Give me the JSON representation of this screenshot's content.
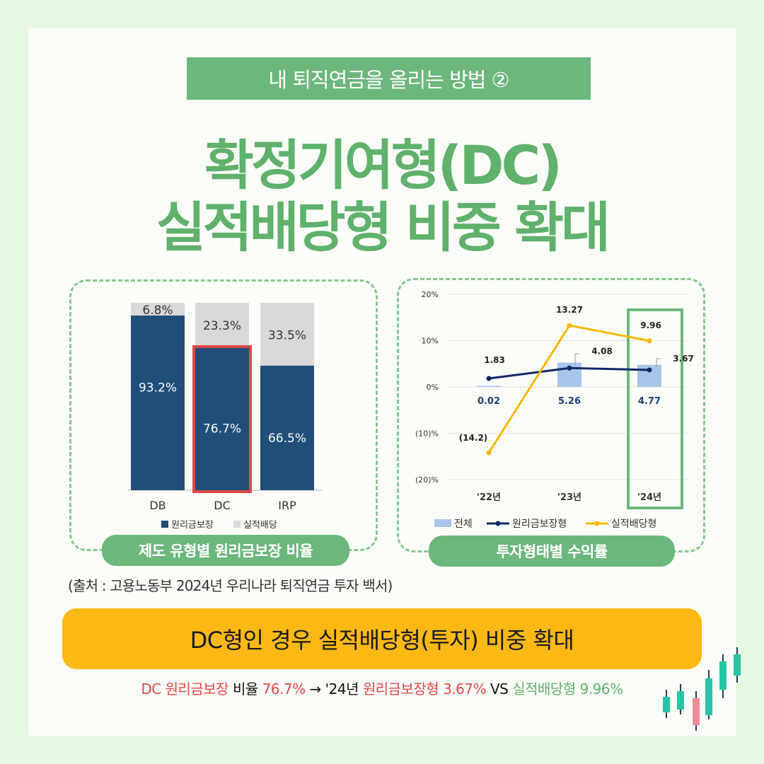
{
  "header": {
    "tag": "내 퇴직연금을 올리는 방법 ②",
    "title_line1": "확정기여형(DC)",
    "title_line2": "실적배당형 비중 확대"
  },
  "colors": {
    "green": "#6cb77c",
    "navy": "#1f4e79",
    "gray": "#d9d9d9",
    "orange": "#fdb813",
    "red": "#e04848",
    "gold": "#f5b800",
    "lightblue": "#a9c4ea",
    "darknavy": "#0d2a6b"
  },
  "chart_data": [
    {
      "type": "bar",
      "stacked": true,
      "categories": [
        "DB",
        "DC",
        "IRP"
      ],
      "series": [
        {
          "name": "원리금보장",
          "values": [
            93.2,
            76.7,
            66.5
          ],
          "labels": [
            "93.2%",
            "76.7%",
            "66.5%"
          ]
        },
        {
          "name": "실적배당",
          "values": [
            6.8,
            23.3,
            33.5
          ],
          "labels": [
            "6.8%",
            "23.3%",
            "33.5%"
          ]
        }
      ],
      "ylim": [
        0,
        100
      ],
      "highlight": "DC",
      "legend": "bottom",
      "caption": "제도 유형별 원리금보장 비율"
    },
    {
      "type": "line",
      "categories": [
        "'22년",
        "'23년",
        "'24년"
      ],
      "y_ticks": [
        "20%",
        "10%",
        "0%",
        "(10)%",
        "(20)%"
      ],
      "ylim": [
        -20,
        20
      ],
      "series": [
        {
          "name": "전체",
          "kind": "bar",
          "values": [
            0.02,
            5.26,
            4.77
          ],
          "labels": [
            "0.02",
            "5.26",
            "4.77"
          ]
        },
        {
          "name": "원리금보장형",
          "kind": "line",
          "values": [
            1.83,
            4.08,
            3.67
          ],
          "labels": [
            "1.83",
            "4.08",
            "3.67"
          ]
        },
        {
          "name": "실적배당형",
          "kind": "line",
          "values": [
            -14.2,
            13.27,
            9.96
          ],
          "labels": [
            "(14.2)",
            "13.27",
            "9.96"
          ]
        }
      ],
      "highlight": "'24년",
      "legend": "bottom",
      "caption": "투자형태별 수익률"
    }
  ],
  "source": "(출처 : 고용노동부 2024년 우리나라 퇴직연금 투자 백서)",
  "banner": "DC형인 경우 실적배당형(투자) 비중 확대",
  "footnote": {
    "part1": "DC 원리금보장",
    "part2": " 비율 ",
    "part3": "76.7%",
    "part4": " → '24년 ",
    "part5": "원리금보장형 3.67%",
    "part6": " VS ",
    "part7": "실적배당형 9.96%"
  }
}
